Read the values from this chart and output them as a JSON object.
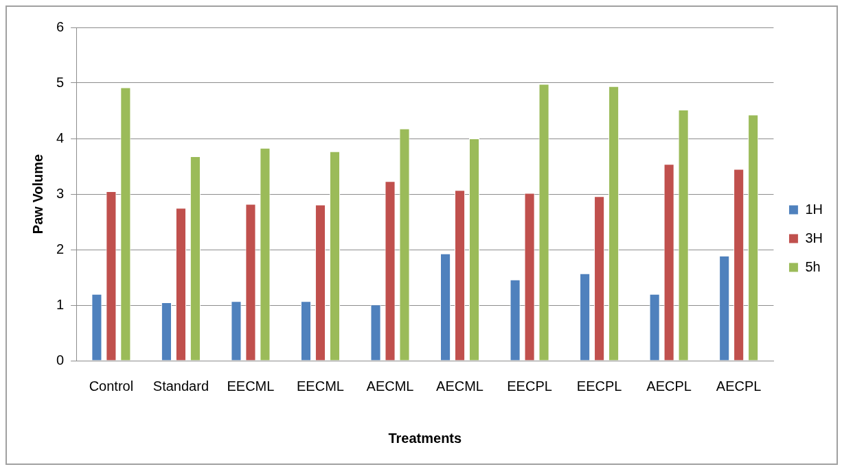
{
  "chart_data": {
    "type": "bar",
    "xlabel": "Treatments",
    "ylabel": "Paw Volume",
    "categories": [
      "Control",
      "Standard",
      "EECML",
      "EECML",
      "AECML",
      "AECML",
      "EECPL",
      "EECPL",
      "AECPL",
      "AECPL"
    ],
    "series": [
      {
        "name": "1H",
        "color": "#4f81bd",
        "values": [
          1.2,
          1.05,
          1.07,
          1.07,
          1.01,
          1.93,
          1.46,
          1.57,
          1.2,
          1.89
        ]
      },
      {
        "name": "3H",
        "color": "#c0504d",
        "values": [
          3.05,
          2.75,
          2.82,
          2.81,
          3.23,
          3.07,
          3.02,
          2.96,
          3.54,
          3.45
        ]
      },
      {
        "name": "5h",
        "color": "#9bbb59",
        "values": [
          4.92,
          3.68,
          3.83,
          3.77,
          4.18,
          4.0,
          4.98,
          4.94,
          4.52,
          4.43
        ]
      }
    ],
    "ylim": [
      0,
      6
    ],
    "yticks": [
      0,
      1,
      2,
      3,
      4,
      5,
      6
    ],
    "grid": "y",
    "legend": "right"
  }
}
